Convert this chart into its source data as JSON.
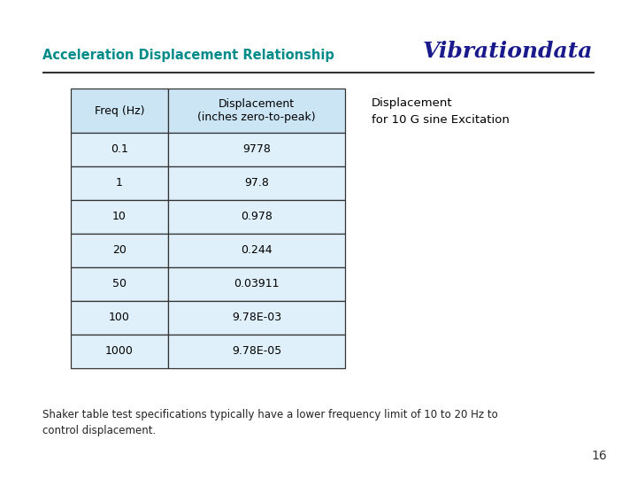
{
  "title_left": "Acceleration Displacement Relationship",
  "title_right": "Vibrationdata",
  "title_left_color": "#008B8B",
  "title_right_color": "#1a1a8c",
  "header_row": [
    "Freq (Hz)",
    "Displacement\n(inches zero-to-peak)"
  ],
  "table_data": [
    [
      "0.1",
      "9778"
    ],
    [
      "1",
      "97.8"
    ],
    [
      "10",
      "0.978"
    ],
    [
      "20",
      "0.244"
    ],
    [
      "50",
      "0.03911"
    ],
    [
      "100",
      "9.78E-03"
    ],
    [
      "1000",
      "9.78E-05"
    ]
  ],
  "side_note": "Displacement\nfor 10 G sine Excitation",
  "footer_text": "Shaker table test specifications typically have a lower frequency limit of 10 to 20 Hz to\ncontrol displacement.",
  "page_number": "16",
  "header_bg_color": "#cce5f5",
  "row_bg_color": "#dff0fa",
  "table_border_color": "#333333",
  "text_color": "#000000",
  "background_color": "#ffffff",
  "line_color": "#333333",
  "title_fontsize": 10.5,
  "brand_fontsize": 18,
  "table_fontsize": 9,
  "footer_fontsize": 8.5,
  "page_fontsize": 10
}
